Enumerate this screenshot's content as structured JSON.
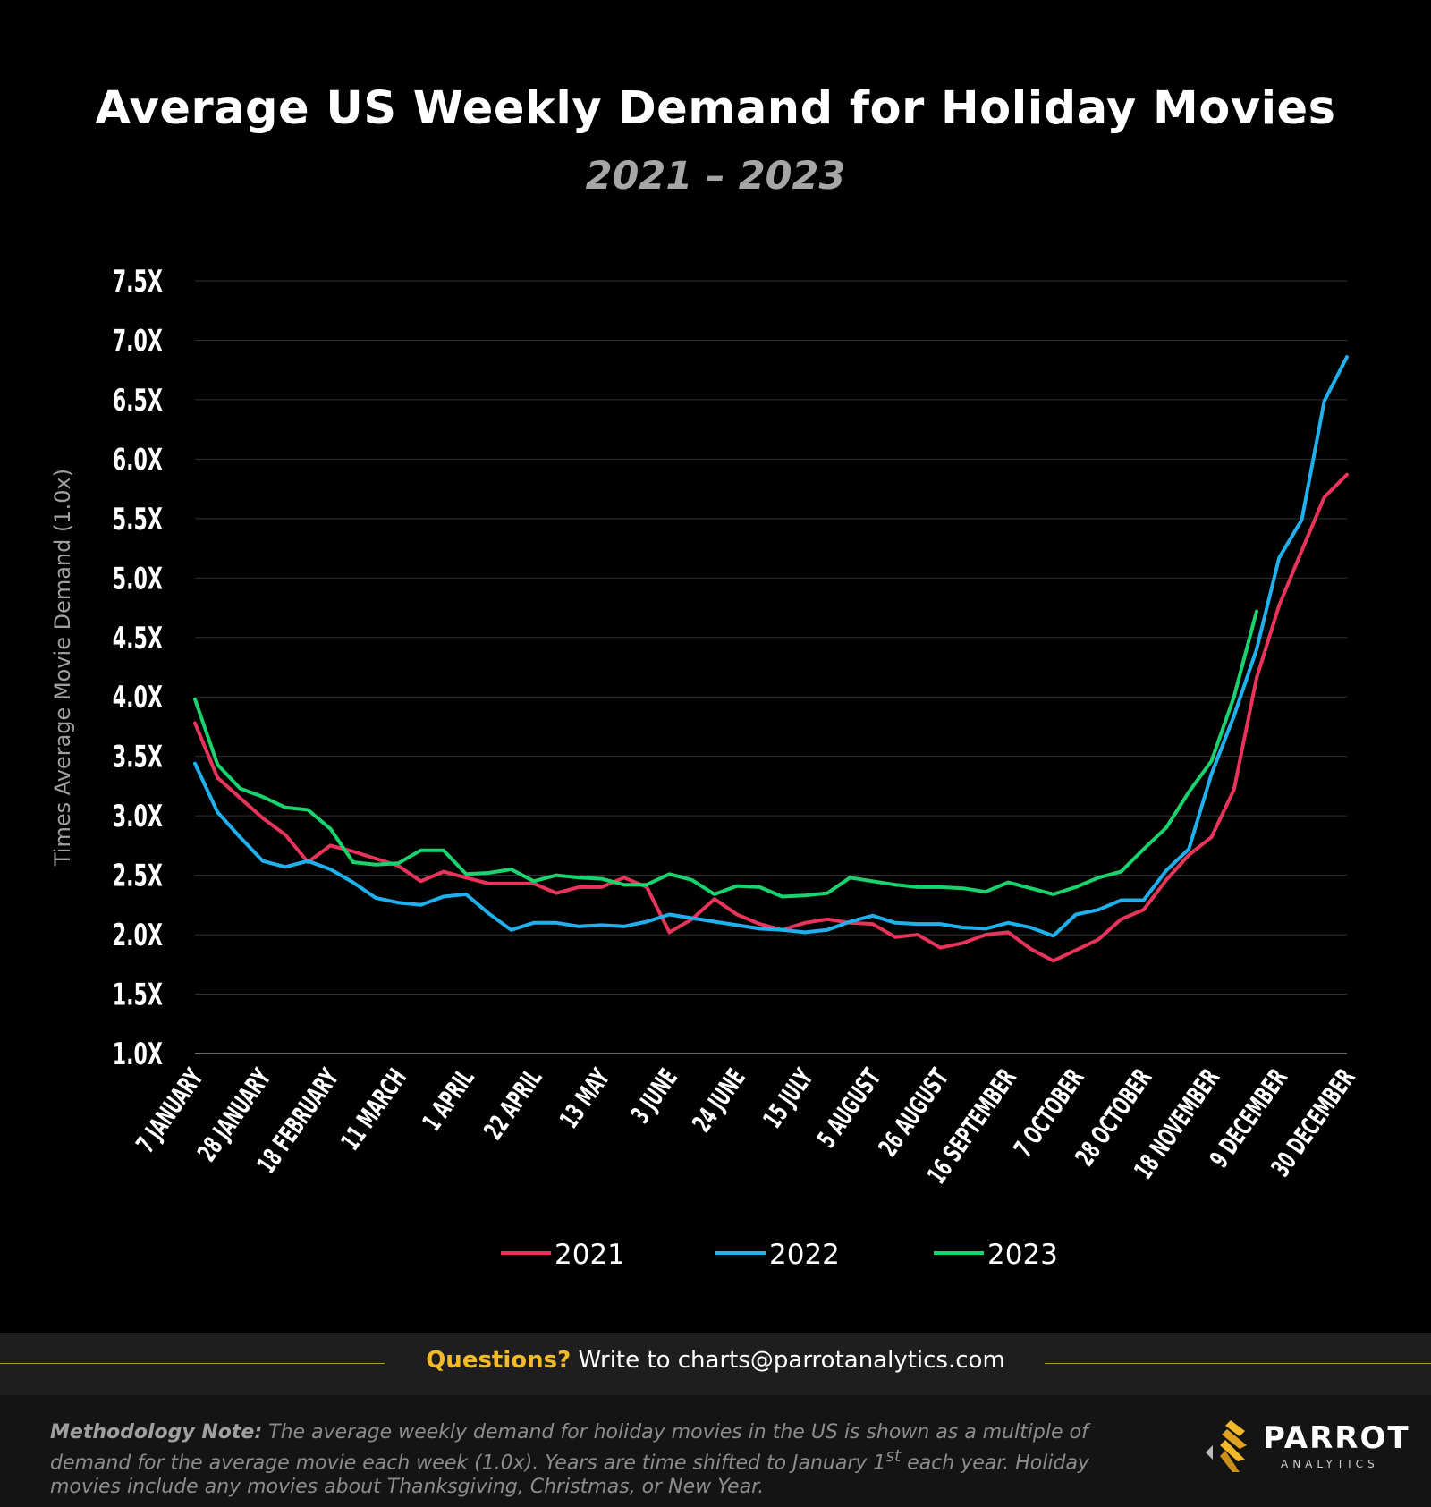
{
  "header": {
    "title": "Average US Weekly Demand for Holiday Movies",
    "subtitle": "2021 – 2023"
  },
  "chart_data": {
    "type": "line",
    "ylabel": "Times Average Movie Demand (1.0x)",
    "ylim": [
      1.0,
      7.5
    ],
    "yticks": [
      {
        "value": 7.5,
        "label": "7.5X"
      },
      {
        "value": 7.0,
        "label": "7.0X"
      },
      {
        "value": 6.5,
        "label": "6.5X"
      },
      {
        "value": 6.0,
        "label": "6.0X"
      },
      {
        "value": 5.5,
        "label": "5.5X"
      },
      {
        "value": 5.0,
        "label": "5.0X"
      },
      {
        "value": 4.5,
        "label": "4.5X"
      },
      {
        "value": 4.0,
        "label": "4.0X"
      },
      {
        "value": 3.5,
        "label": "3.5X"
      },
      {
        "value": 3.0,
        "label": "3.0X"
      },
      {
        "value": 2.5,
        "label": "2.5X"
      },
      {
        "value": 2.0,
        "label": "2.0X"
      },
      {
        "value": 1.5,
        "label": "1.5X"
      },
      {
        "value": 1.0,
        "label": "1.0X"
      }
    ],
    "x_tick_labels": [
      {
        "week": 1,
        "label": "7 JANUARY"
      },
      {
        "week": 4,
        "label": "28 JANUARY"
      },
      {
        "week": 7,
        "label": "18 FEBRUARY"
      },
      {
        "week": 10,
        "label": "11 MARCH"
      },
      {
        "week": 13,
        "label": "1 APRIL"
      },
      {
        "week": 16,
        "label": "22 APRIL"
      },
      {
        "week": 19,
        "label": "13 MAY"
      },
      {
        "week": 22,
        "label": "3 JUNE"
      },
      {
        "week": 25,
        "label": "24 JUNE"
      },
      {
        "week": 28,
        "label": "15 JULY"
      },
      {
        "week": 31,
        "label": "5 AUGUST"
      },
      {
        "week": 34,
        "label": "26 AUGUST"
      },
      {
        "week": 37,
        "label": "16 SEPTEMBER"
      },
      {
        "week": 40,
        "label": "7 OCTOBER"
      },
      {
        "week": 43,
        "label": "28 OCTOBER"
      },
      {
        "week": 46,
        "label": "18 NOVEMBER"
      },
      {
        "week": 49,
        "label": "9 DECEMBER"
      },
      {
        "week": 52,
        "label": "30 DECEMBER"
      }
    ],
    "grid": true,
    "legend_position": "bottom",
    "series": [
      {
        "name": "2021",
        "color": "#e8345a",
        "values": [
          3.78,
          3.32,
          3.15,
          2.98,
          2.84,
          2.61,
          2.75,
          2.7,
          2.64,
          2.58,
          2.45,
          2.53,
          2.48,
          2.43,
          2.43,
          2.43,
          2.35,
          2.4,
          2.4,
          2.48,
          2.4,
          2.02,
          2.13,
          2.3,
          2.17,
          2.09,
          2.04,
          2.1,
          2.13,
          2.1,
          2.09,
          1.98,
          2.0,
          1.89,
          1.93,
          2.0,
          2.02,
          1.88,
          1.78,
          1.87,
          1.96,
          2.13,
          2.21,
          2.46,
          2.67,
          2.82,
          3.22,
          4.16,
          4.77,
          5.23,
          5.68,
          5.87
        ]
      },
      {
        "name": "2022",
        "color": "#1fb1ee",
        "values": [
          3.44,
          3.03,
          2.82,
          2.62,
          2.57,
          2.62,
          2.55,
          2.44,
          2.31,
          2.27,
          2.25,
          2.32,
          2.34,
          2.18,
          2.04,
          2.1,
          2.1,
          2.07,
          2.08,
          2.07,
          2.11,
          2.17,
          2.14,
          2.11,
          2.08,
          2.05,
          2.04,
          2.02,
          2.04,
          2.11,
          2.16,
          2.1,
          2.09,
          2.09,
          2.06,
          2.05,
          2.1,
          2.06,
          1.99,
          2.17,
          2.21,
          2.29,
          2.29,
          2.54,
          2.72,
          3.35,
          3.84,
          4.4,
          5.17,
          5.49,
          6.49,
          6.86
        ]
      },
      {
        "name": "2023",
        "color": "#19d46e",
        "values": [
          3.98,
          3.43,
          3.23,
          3.16,
          3.07,
          3.05,
          2.89,
          2.61,
          2.59,
          2.6,
          2.71,
          2.71,
          2.51,
          2.52,
          2.55,
          2.45,
          2.5,
          2.48,
          2.47,
          2.42,
          2.42,
          2.51,
          2.46,
          2.34,
          2.41,
          2.4,
          2.32,
          2.33,
          2.35,
          2.48,
          2.45,
          2.42,
          2.4,
          2.4,
          2.39,
          2.36,
          2.44,
          2.39,
          2.34,
          2.4,
          2.48,
          2.53,
          2.72,
          2.9,
          3.2,
          3.46,
          4.0,
          4.72
        ]
      }
    ]
  },
  "footer": {
    "questions_label": "Questions?",
    "questions_text": " Write to charts@parrotanalytics.com",
    "methodology_label": "Methodology Note:",
    "methodology_text_1": " The average weekly demand for holiday movies in the US is shown as a multiple of demand for the average movie each week (1.0x).  Years are time shifted to January 1",
    "methodology_sup": "st",
    "methodology_text_2": " each year.  Holiday movies include any movies about Thanksgiving, Christmas, or New Year.",
    "logo_word": "PARROT",
    "logo_sub": "ANALYTICS"
  },
  "colors": {
    "background": "#000000",
    "grid": "#333333",
    "accent": "#f2b92b"
  }
}
